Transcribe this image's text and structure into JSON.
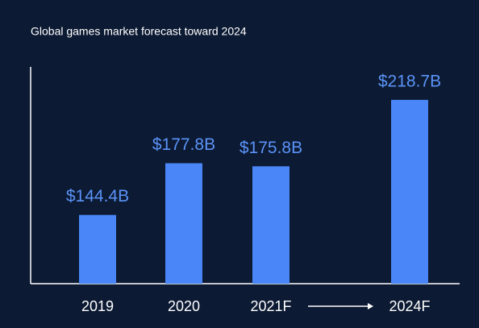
{
  "chart_data": {
    "type": "bar",
    "title": "Global games market forecast toward 2024",
    "categories": [
      "2019",
      "2020",
      "2021F",
      "2024F"
    ],
    "values": [
      144.4,
      177.8,
      175.8,
      218.7
    ],
    "value_labels": [
      "$144.4B",
      "$177.8B",
      "$175.8B",
      "$218.7B"
    ],
    "color": "#4a86f7",
    "ylim": [
      100,
      240
    ]
  }
}
